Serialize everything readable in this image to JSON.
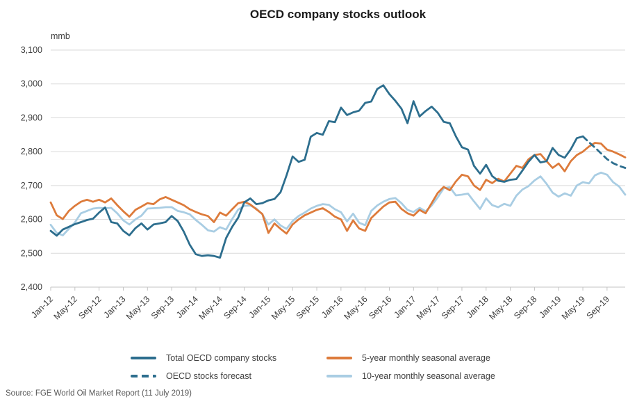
{
  "title": "OECD company stocks outlook",
  "source": "Source: FGE World Oil Market Report (11 July 2019)",
  "colors": {
    "total": "#2d6e8e",
    "forecast": "#2d6e8e",
    "five_year": "#dd7b3b",
    "ten_year": "#a9cde3",
    "gridline": "#d9d9d9",
    "axis": "#c3c3c3",
    "tick_text": "#404040"
  },
  "y_axis": {
    "unit_label": "mmb",
    "tick_labels": [
      "3,100",
      "3,000",
      "2,900",
      "2,800",
      "2,700",
      "2,600",
      "2,500",
      "2,400"
    ],
    "min": 2400,
    "max": 3100,
    "step": 100
  },
  "x_axis": {
    "months_total": 96,
    "tick_every": 4,
    "tick_labels": [
      "Jan-12",
      "May-12",
      "Sep-12",
      "Jan-13",
      "May-13",
      "Sep-13",
      "Jan-14",
      "May-14",
      "Sep-14",
      "Jan-15",
      "May-15",
      "Sep-15",
      "Jan-16",
      "May-16",
      "Sep-16",
      "Jan-17",
      "May-17",
      "Sep-17",
      "Jan-18",
      "May-18",
      "Sep-18",
      "Jan-19",
      "May-19",
      "Sep-19"
    ]
  },
  "legend": [
    {
      "id": "total",
      "label": "Total OECD company stocks",
      "color": "#2d6e8e",
      "dashed": false
    },
    {
      "id": "forecast",
      "label": "OECD stocks forecast",
      "color": "#2d6e8e",
      "dashed": true
    },
    {
      "id": "five_year",
      "label": "5-year monthly seasonal average",
      "color": "#dd7b3b",
      "dashed": false
    },
    {
      "id": "ten_year",
      "label": "10-year monthly seasonal average",
      "color": "#a9cde3",
      "dashed": false
    }
  ],
  "chart_data": {
    "type": "line",
    "x_start": "Jan-12",
    "x_end": "Dec-19",
    "x_frequency": "monthly",
    "ylabel": "mmb",
    "ylim": [
      2400,
      3100
    ],
    "grid": "horizontal",
    "legend_position": "bottom",
    "series": [
      {
        "name": "10-year monthly seasonal average",
        "color": "#a9cde3",
        "style": "solid",
        "start_index": 0,
        "values": [
          2584,
          2560,
          2553,
          2572,
          2591,
          2618,
          2625,
          2632,
          2634,
          2633,
          2634,
          2618,
          2597,
          2585,
          2600,
          2611,
          2632,
          2633,
          2634,
          2636,
          2636,
          2625,
          2621,
          2615,
          2598,
          2584,
          2568,
          2564,
          2577,
          2570,
          2601,
          2629,
          2640,
          2641,
          2632,
          2615,
          2585,
          2600,
          2582,
          2572,
          2595,
          2610,
          2620,
          2632,
          2640,
          2645,
          2643,
          2630,
          2621,
          2594,
          2617,
          2590,
          2583,
          2625,
          2641,
          2652,
          2660,
          2663,
          2648,
          2628,
          2622,
          2634,
          2624,
          2641,
          2665,
          2692,
          2695,
          2671,
          2673,
          2676,
          2653,
          2631,
          2662,
          2642,
          2636,
          2646,
          2640,
          2670,
          2688,
          2698,
          2715,
          2727,
          2705,
          2679,
          2667,
          2677,
          2670,
          2700,
          2710,
          2706,
          2730,
          2738,
          2732,
          2710,
          2697,
          2673
        ]
      },
      {
        "name": "5-year monthly seasonal average",
        "color": "#dd7b3b",
        "style": "solid",
        "start_index": 0,
        "values": [
          2650,
          2612,
          2601,
          2625,
          2640,
          2652,
          2658,
          2652,
          2658,
          2650,
          2662,
          2642,
          2624,
          2608,
          2628,
          2638,
          2648,
          2645,
          2659,
          2666,
          2658,
          2650,
          2642,
          2630,
          2622,
          2615,
          2610,
          2592,
          2620,
          2611,
          2630,
          2648,
          2652,
          2644,
          2630,
          2616,
          2560,
          2588,
          2572,
          2558,
          2585,
          2600,
          2612,
          2620,
          2628,
          2633,
          2622,
          2608,
          2600,
          2566,
          2597,
          2573,
          2566,
          2604,
          2621,
          2638,
          2650,
          2652,
          2631,
          2618,
          2611,
          2628,
          2618,
          2648,
          2678,
          2696,
          2686,
          2712,
          2732,
          2727,
          2700,
          2687,
          2717,
          2707,
          2720,
          2712,
          2735,
          2758,
          2752,
          2777,
          2790,
          2793,
          2772,
          2752,
          2765,
          2742,
          2772,
          2790,
          2800,
          2815,
          2826,
          2824,
          2806,
          2800,
          2792,
          2783
        ]
      },
      {
        "name": "Total OECD company stocks",
        "color": "#2d6e8e",
        "style": "solid",
        "start_index": 0,
        "values": [
          2566,
          2552,
          2570,
          2578,
          2586,
          2592,
          2598,
          2602,
          2620,
          2635,
          2592,
          2588,
          2566,
          2553,
          2574,
          2588,
          2570,
          2585,
          2588,
          2592,
          2610,
          2595,
          2564,
          2525,
          2497,
          2492,
          2494,
          2492,
          2487,
          2545,
          2578,
          2605,
          2650,
          2662,
          2645,
          2648,
          2656,
          2660,
          2680,
          2730,
          2786,
          2770,
          2776,
          2844,
          2855,
          2850,
          2890,
          2887,
          2930,
          2908,
          2916,
          2921,
          2944,
          2948,
          2985,
          2996,
          2970,
          2950,
          2927,
          2884,
          2949,
          2904,
          2920,
          2933,
          2915,
          2888,
          2884,
          2845,
          2813,
          2806,
          2758,
          2735,
          2761,
          2728,
          2714,
          2711,
          2717,
          2719,
          2744,
          2770,
          2790,
          2768,
          2772,
          2811,
          2790,
          2782,
          2807,
          2840,
          2845
        ]
      },
      {
        "name": "OECD stocks forecast",
        "color": "#2d6e8e",
        "style": "dashed",
        "start_index": 88,
        "values": [
          2845,
          2828,
          2812,
          2795,
          2778,
          2766,
          2758,
          2752
        ]
      }
    ]
  }
}
